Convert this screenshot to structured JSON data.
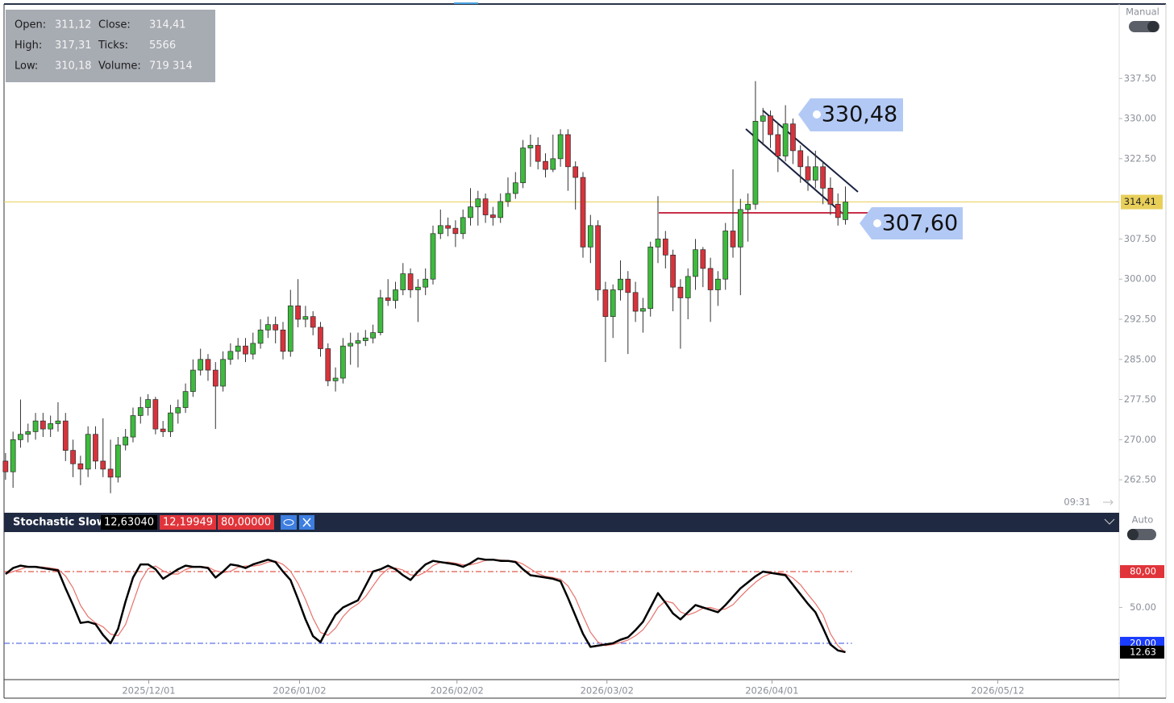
{
  "info_panel": {
    "rows": [
      [
        "Open:",
        "311,12",
        "Close:",
        "314,41"
      ],
      [
        "High:",
        "317,31",
        "Ticks:",
        "5566"
      ],
      [
        "Low:",
        "310,18",
        "Volume:",
        "719 314"
      ]
    ]
  },
  "main_toggle": "Manual",
  "time_label": "09:31",
  "annotations": [
    "330,48",
    "307,60"
  ],
  "chart_data": [
    {
      "type": "candlestick",
      "up_color": "#3dbb3d",
      "down_color": "#d8333c",
      "open": [
        266,
        264,
        270,
        271,
        271.5,
        273.5,
        272,
        273,
        273.5,
        268,
        265.5,
        264.5,
        271,
        266,
        264.5,
        263,
        269,
        270.5,
        274.5,
        276,
        277.5,
        272,
        271.5,
        275,
        276,
        279,
        283,
        285,
        283,
        280,
        285,
        286.5,
        287.5,
        286,
        288,
        290.5,
        291.5,
        290.5,
        286.5,
        295,
        292.5,
        293,
        291,
        287,
        281,
        281.5,
        287.5,
        288,
        288.5,
        289,
        290,
        296.5,
        296,
        298,
        301,
        298,
        298.5,
        300,
        308.5,
        310,
        309.5,
        308.5,
        311.5,
        313.5,
        315,
        312,
        311.5,
        314.5,
        316,
        318,
        324.5,
        325,
        322,
        320.5,
        322.5,
        327,
        321,
        319,
        306,
        310,
        298,
        293,
        298,
        300,
        297.5,
        294,
        294.5,
        306,
        307.5,
        304.5,
        298.5,
        296.5,
        300.5,
        305.5,
        302,
        298,
        300,
        309,
        306,
        313,
        314,
        329.5,
        330.5,
        327,
        323,
        329,
        324,
        321,
        318.5,
        321,
        317,
        314,
        311.12
      ],
      "high": [
        267.5,
        271.5,
        277.5,
        273,
        275,
        275,
        274.5,
        277,
        275,
        270,
        267,
        272.5,
        272.5,
        274,
        270,
        270.5,
        272,
        276,
        278,
        278.5,
        278,
        273.5,
        276.5,
        277.5,
        280.5,
        285,
        287,
        286,
        284.5,
        286.5,
        288,
        289,
        289,
        290,
        292.5,
        293,
        293,
        292,
        298,
        300,
        295,
        294,
        292,
        288,
        283.5,
        289,
        290,
        290,
        290.5,
        291.5,
        298,
        300,
        299.5,
        303,
        302,
        300,
        302,
        310,
        313,
        311.5,
        311,
        313,
        317,
        316.5,
        316,
        313.5,
        316,
        319,
        320,
        326,
        327,
        326.5,
        323.5,
        327,
        328,
        328,
        322,
        320,
        312,
        311,
        299.5,
        299,
        303.5,
        301.5,
        299.5,
        296.5,
        307,
        315.5,
        309,
        305.5,
        300,
        302,
        307.5,
        306,
        304,
        301.5,
        310.5,
        320.5,
        315,
        316,
        337,
        332,
        331.5,
        329,
        332.5,
        330,
        325,
        323,
        324,
        322,
        319,
        316,
        317.31
      ],
      "low": [
        262.5,
        261,
        268.5,
        269.5,
        270,
        270.5,
        270.5,
        271.5,
        266,
        263,
        261.5,
        263,
        264.5,
        263,
        260,
        262,
        268,
        269.5,
        273,
        274.5,
        271,
        270.5,
        270.5,
        273,
        275,
        278,
        282,
        281,
        272,
        279,
        284,
        285,
        284.5,
        285,
        287,
        289,
        288,
        285,
        285.5,
        291,
        291,
        289.5,
        285.5,
        280,
        279,
        280.5,
        284,
        283.5,
        287.5,
        288,
        289.5,
        295,
        294.5,
        297,
        296.5,
        292,
        297,
        299,
        307.5,
        308,
        306,
        307.5,
        310,
        310,
        310.5,
        310,
        310.5,
        313.5,
        315,
        317,
        321,
        320.5,
        319,
        320,
        321,
        316.5,
        313,
        304,
        303,
        296,
        284.5,
        289,
        296,
        286,
        292,
        290,
        293,
        303,
        302,
        294,
        287,
        292.5,
        298,
        298.5,
        292,
        295,
        298,
        304,
        297,
        307,
        313,
        325,
        324.5,
        320,
        322,
        321.5,
        318,
        316.5,
        317,
        314,
        312,
        310,
        310.18
      ],
      "close": [
        264,
        270,
        271,
        271.5,
        273.5,
        272,
        273,
        273.5,
        268,
        265.5,
        264.5,
        271,
        266,
        264.5,
        263,
        269,
        270.5,
        274.5,
        276,
        277.5,
        272,
        271.5,
        275,
        276,
        279,
        283,
        285,
        283,
        280,
        285,
        286.5,
        287.5,
        286,
        288,
        290.5,
        291.5,
        290.5,
        286.5,
        295,
        292.5,
        293,
        291,
        287,
        281,
        281.5,
        287.5,
        288,
        288.5,
        289,
        290,
        296.5,
        296,
        298,
        301,
        298,
        298.5,
        300,
        308.5,
        310,
        309.5,
        308.5,
        311.5,
        313.5,
        315,
        312,
        311.5,
        314.5,
        316,
        318,
        324.5,
        325,
        322,
        320.5,
        322.5,
        327,
        321,
        319,
        306,
        310,
        298,
        293,
        298,
        300,
        297.5,
        294,
        294.5,
        306,
        307.5,
        304.5,
        298.5,
        296.5,
        300.5,
        305.5,
        302,
        298,
        300,
        309,
        306,
        313,
        314,
        329.5,
        330.5,
        327,
        323,
        329,
        324,
        321,
        318.5,
        321,
        317,
        314,
        311.5,
        314.41
      ],
      "xlim": [
        -0.2,
        148.5
      ],
      "xticks": [
        {
          "value": 19.1,
          "label": "2025/12/01"
        },
        {
          "value": 39.2,
          "label": "2026/01/02"
        },
        {
          "value": 60.2,
          "label": "2026/02/02"
        },
        {
          "value": 80.2,
          "label": "2026/03/02"
        },
        {
          "value": 102.2,
          "label": "2026/04/01"
        },
        {
          "value": 132.3,
          "label": "2026/05/12"
        }
      ],
      "ylim": [
        256.8,
        351.4
      ],
      "yticks": [
        {
          "value": 337.5,
          "label": "337.50"
        },
        {
          "value": 330,
          "label": "330.00"
        },
        {
          "value": 322.5,
          "label": "322.50"
        },
        {
          "value": 307.5,
          "label": "307.50"
        },
        {
          "value": 300,
          "label": "300.00"
        },
        {
          "value": 292.5,
          "label": "292.50"
        },
        {
          "value": 285,
          "label": "285.00"
        },
        {
          "value": 277.5,
          "label": "277.50"
        },
        {
          "value": 270,
          "label": "270.00"
        },
        {
          "value": 262.5,
          "label": "262.50"
        }
      ],
      "last_price": {
        "value": 314.41,
        "label": "314,41",
        "color": "#e8cf5a"
      }
    },
    {
      "type": "line",
      "title": "Stochastic Slow",
      "toggle": "Auto",
      "header_values": [
        "12,63040",
        "12,19949",
        "80,00000"
      ],
      "ylim": [
        -10.4,
        112.4
      ],
      "yticks": [
        {
          "value": 80,
          "label": "80,00"
        },
        {
          "value": 50,
          "label": "50.00"
        },
        {
          "value": 20,
          "label": "20,00"
        }
      ],
      "levels": [
        {
          "value": 80,
          "color": "#e05a4a"
        },
        {
          "value": 20,
          "color": "#4a62e0"
        }
      ],
      "last_value": {
        "value": 12.6304,
        "label": "12.63"
      },
      "series": [
        {
          "color": "#000000",
          "values": [
            78,
            83,
            85,
            84,
            84,
            83,
            82,
            81,
            66,
            52,
            37,
            38,
            36,
            27,
            20,
            32,
            55,
            75,
            86,
            86,
            82,
            74,
            78,
            82,
            85,
            84,
            84,
            83,
            75,
            80,
            86,
            85,
            83,
            86,
            88,
            90,
            88,
            80,
            73,
            57,
            40,
            26,
            21,
            33,
            44,
            50,
            53,
            56,
            68,
            80,
            82,
            85,
            82,
            77,
            73,
            80,
            86,
            89,
            88,
            87,
            86,
            84,
            87,
            91,
            90,
            90,
            89,
            89,
            88,
            82,
            77,
            76,
            75,
            74,
            72,
            58,
            43,
            28,
            17,
            18,
            19,
            20,
            23,
            25,
            31,
            38,
            50,
            62,
            54,
            45,
            40,
            46,
            52,
            50,
            48,
            46,
            52,
            59,
            66,
            71,
            76,
            80,
            79,
            78,
            77,
            69,
            61,
            53,
            46,
            33,
            19,
            14,
            12.6304
          ]
        },
        {
          "color": "#e8706a",
          "values": [
            78,
            80,
            82,
            84,
            84.3,
            83.7,
            83,
            82,
            76.3,
            66.3,
            51.7,
            42.3,
            37,
            33.7,
            27.7,
            26.3,
            35.7,
            54,
            72,
            82.3,
            84.7,
            80.7,
            78,
            78,
            81.7,
            83.7,
            84.3,
            83.7,
            80.7,
            79.3,
            80.3,
            83.7,
            84.7,
            84.7,
            85.7,
            88,
            88.7,
            86,
            80.3,
            70,
            56.7,
            41,
            29,
            26.7,
            32.7,
            42.3,
            49,
            53,
            59,
            68,
            76.7,
            82.3,
            83,
            81.3,
            77.3,
            76.7,
            79.7,
            85,
            87.7,
            88,
            87,
            85.7,
            85.7,
            87.3,
            89.3,
            90.3,
            89.7,
            89.3,
            88.7,
            86.3,
            82.3,
            78.3,
            76,
            75,
            73.7,
            68,
            57.7,
            43,
            29.3,
            21,
            18,
            19,
            20.7,
            22.7,
            26.3,
            31.3,
            39.7,
            50,
            55.3,
            53.7,
            46.3,
            43.7,
            46,
            49.3,
            50,
            48,
            48.7,
            52.3,
            59,
            65.3,
            71,
            75.7,
            78.3,
            79,
            78,
            74.7,
            69,
            61,
            53.3,
            44,
            28,
            18,
            12.19949
          ]
        }
      ]
    }
  ]
}
